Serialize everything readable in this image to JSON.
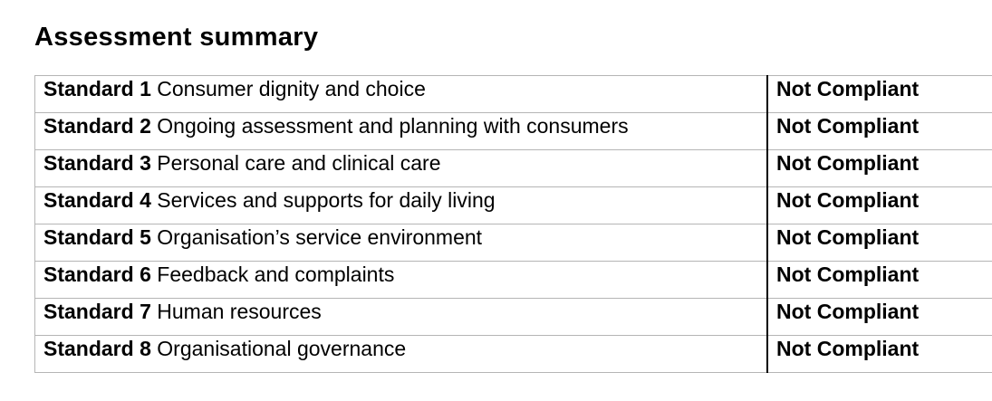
{
  "page": {
    "title": "Assessment summary"
  },
  "table": {
    "rows": [
      {
        "standard": "Standard 1",
        "description": "Consumer dignity and choice",
        "status": "Not Compliant"
      },
      {
        "standard": "Standard 2",
        "description": "Ongoing assessment and planning with consumers",
        "status": "Not Compliant"
      },
      {
        "standard": "Standard 3",
        "description": "Personal care and clinical care",
        "status": "Not Compliant"
      },
      {
        "standard": "Standard 4",
        "description": "Services and supports for daily living",
        "status": "Not Compliant"
      },
      {
        "standard": "Standard 5",
        "description": "Organisation’s service environment",
        "status": "Not Compliant"
      },
      {
        "standard": "Standard 6",
        "description": "Feedback and complaints",
        "status": "Not Compliant"
      },
      {
        "standard": "Standard 7",
        "description": "Human resources",
        "status": "Not Compliant"
      },
      {
        "standard": "Standard 8",
        "description": "Organisational governance",
        "status": "Not Compliant"
      }
    ]
  },
  "colors": {
    "text": "#000000",
    "border_gray": "#b5b5b5",
    "column_divider": "#000000",
    "background": "#ffffff"
  }
}
